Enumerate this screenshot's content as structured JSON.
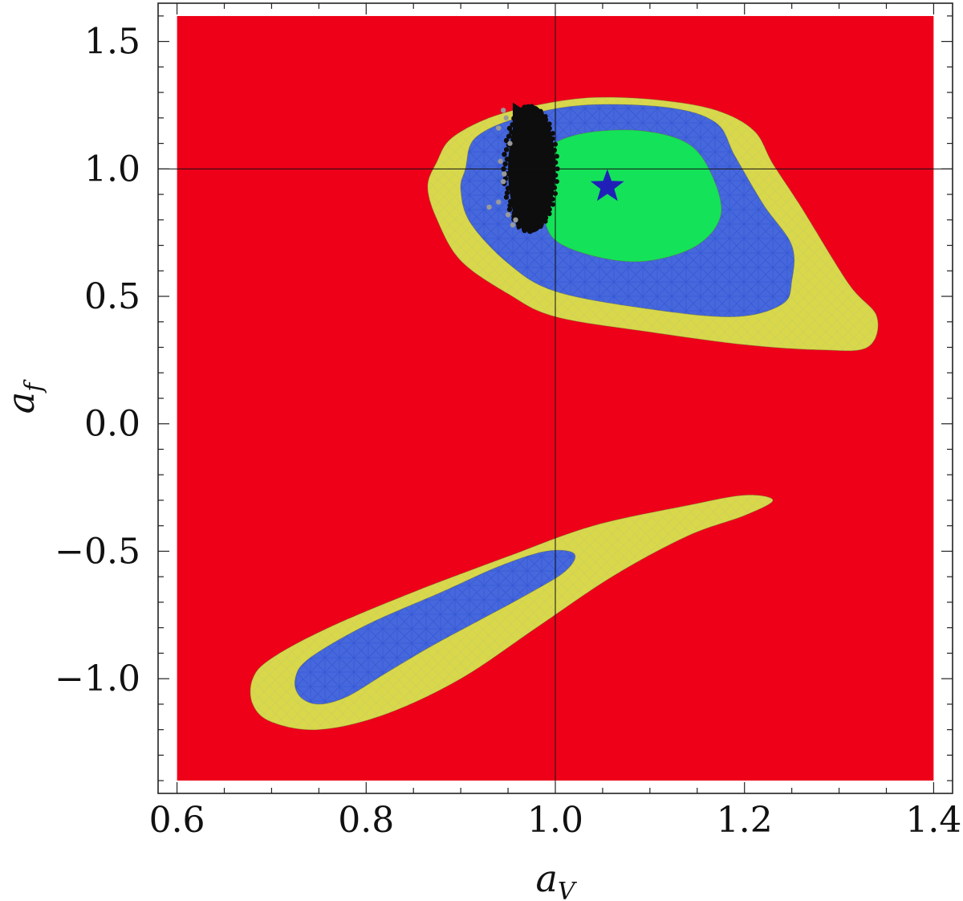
{
  "chart_data": {
    "type": "contour",
    "title": "",
    "xlabel": {
      "main": "a",
      "sub": "V"
    },
    "ylabel": {
      "main": "a",
      "sub": "f"
    },
    "xlim": [
      0.6,
      1.4
    ],
    "ylim": [
      -1.4,
      1.6
    ],
    "frame_xlim": [
      0.58,
      1.42
    ],
    "frame_ylim": [
      -1.45,
      1.65
    ],
    "x_major_ticks": [
      0.6,
      0.8,
      1.0,
      1.2,
      1.4
    ],
    "x_tick_labels": [
      "0.6",
      "0.8",
      "1.0",
      "1.2",
      "1.4"
    ],
    "x_minor_step": 0.05,
    "y_major_ticks": [
      1.5,
      1.0,
      0.5,
      0.0,
      -0.5,
      -1.0
    ],
    "y_tick_labels": [
      "1.5",
      "1.0",
      "0.5",
      "0.0",
      "−0.5",
      "−1.0"
    ],
    "y_minor_step": 0.1,
    "reference_lines": {
      "x": 1.0,
      "y": 1.0
    },
    "colors": {
      "background_region": "#ee0019",
      "yellow_region": "#d8d84a",
      "blue_region": "#4668dc",
      "green_region": "#14e259",
      "mesh": "#2a4bd0",
      "scatter_dark": "#0d0d0d",
      "scatter_light": "#9a9a9a",
      "best_fit_star": "#2020b8"
    },
    "regions": [
      {
        "name": "upper-yellow",
        "color_key": "yellow_region",
        "points": [
          [
            0.875,
            1.03
          ],
          [
            0.89,
            1.12
          ],
          [
            0.93,
            1.2
          ],
          [
            0.98,
            1.25
          ],
          [
            1.04,
            1.28
          ],
          [
            1.11,
            1.27
          ],
          [
            1.17,
            1.23
          ],
          [
            1.21,
            1.15
          ],
          [
            1.23,
            1.02
          ],
          [
            1.26,
            0.85
          ],
          [
            1.31,
            0.55
          ],
          [
            1.34,
            0.42
          ],
          [
            1.33,
            0.3
          ],
          [
            1.28,
            0.29
          ],
          [
            1.2,
            0.31
          ],
          [
            1.1,
            0.36
          ],
          [
            1.0,
            0.42
          ],
          [
            0.95,
            0.51
          ],
          [
            0.9,
            0.64
          ],
          [
            0.875,
            0.8
          ],
          [
            0.865,
            0.93
          ]
        ]
      },
      {
        "name": "upper-blue",
        "color_key": "blue_region",
        "points": [
          [
            0.905,
            1.0
          ],
          [
            0.915,
            1.12
          ],
          [
            0.96,
            1.2
          ],
          [
            1.03,
            1.25
          ],
          [
            1.12,
            1.24
          ],
          [
            1.17,
            1.18
          ],
          [
            1.19,
            1.05
          ],
          [
            1.22,
            0.86
          ],
          [
            1.25,
            0.7
          ],
          [
            1.25,
            0.56
          ],
          [
            1.24,
            0.47
          ],
          [
            1.19,
            0.42
          ],
          [
            1.1,
            0.45
          ],
          [
            1.0,
            0.52
          ],
          [
            0.95,
            0.63
          ],
          [
            0.91,
            0.79
          ],
          [
            0.9,
            0.92
          ]
        ]
      },
      {
        "name": "upper-green",
        "color_key": "green_region",
        "points": [
          [
            0.975,
            0.98
          ],
          [
            0.99,
            1.08
          ],
          [
            1.03,
            1.14
          ],
          [
            1.09,
            1.15
          ],
          [
            1.14,
            1.1
          ],
          [
            1.165,
            0.98
          ],
          [
            1.175,
            0.82
          ],
          [
            1.15,
            0.7
          ],
          [
            1.1,
            0.64
          ],
          [
            1.05,
            0.65
          ],
          [
            1.0,
            0.72
          ],
          [
            0.985,
            0.85
          ]
        ]
      },
      {
        "name": "lower-yellow",
        "color_key": "yellow_region",
        "points": [
          [
            0.68,
            -1.0
          ],
          [
            0.7,
            -0.92
          ],
          [
            0.76,
            -0.8
          ],
          [
            0.85,
            -0.66
          ],
          [
            0.95,
            -0.52
          ],
          [
            1.04,
            -0.4
          ],
          [
            1.14,
            -0.32
          ],
          [
            1.2,
            -0.28
          ],
          [
            1.23,
            -0.3
          ],
          [
            1.2,
            -0.36
          ],
          [
            1.14,
            -0.44
          ],
          [
            1.06,
            -0.6
          ],
          [
            0.98,
            -0.8
          ],
          [
            0.9,
            -1.0
          ],
          [
            0.82,
            -1.14
          ],
          [
            0.75,
            -1.2
          ],
          [
            0.7,
            -1.17
          ],
          [
            0.68,
            -1.1
          ]
        ]
      },
      {
        "name": "lower-blue",
        "color_key": "blue_region",
        "points": [
          [
            0.725,
            -1.0
          ],
          [
            0.74,
            -0.92
          ],
          [
            0.8,
            -0.79
          ],
          [
            0.88,
            -0.66
          ],
          [
            0.94,
            -0.56
          ],
          [
            0.99,
            -0.5
          ],
          [
            1.02,
            -0.51
          ],
          [
            1.01,
            -0.58
          ],
          [
            0.97,
            -0.67
          ],
          [
            0.92,
            -0.77
          ],
          [
            0.87,
            -0.87
          ],
          [
            0.82,
            -0.98
          ],
          [
            0.78,
            -1.07
          ],
          [
            0.75,
            -1.1
          ],
          [
            0.73,
            -1.07
          ]
        ]
      }
    ],
    "scatter_cluster": {
      "name": "black-point-cloud",
      "center": [
        0.975,
        1.0
      ],
      "half_width": 0.025,
      "half_height": 0.25,
      "top_tail": [
        0.955,
        1.26
      ],
      "bottom_tail": [
        0.96,
        0.76
      ]
    },
    "gray_points": [
      [
        0.945,
        1.23
      ],
      [
        0.94,
        1.16
      ],
      [
        0.942,
        1.03
      ],
      [
        0.946,
        0.98
      ],
      [
        0.945,
        0.95
      ],
      [
        0.94,
        0.87
      ],
      [
        0.93,
        0.85
      ],
      [
        0.95,
        0.82
      ],
      [
        0.955,
        0.78
      ],
      [
        0.958,
        0.8
      ],
      [
        0.952,
        1.1
      ],
      [
        0.948,
        1.2
      ]
    ],
    "best_fit": {
      "name": "best-fit-star",
      "x": 1.055,
      "y": 0.93
    }
  }
}
